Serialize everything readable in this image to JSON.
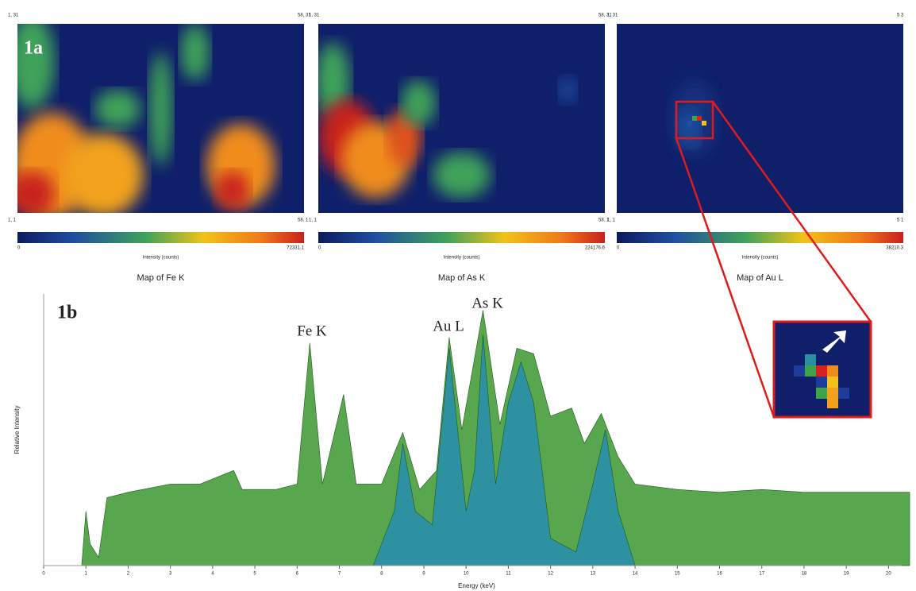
{
  "panel_a": {
    "label": "1a",
    "maps": [
      {
        "title": "Map of Fe K",
        "colorbar_label": "Intensity (counts)",
        "colorbar_min": 0,
        "colorbar_max": 72331.1,
        "corners": {
          "top_left": "1, 31",
          "top_right": "58, 31",
          "bottom_left": "1, 1",
          "bottom_right": "58, 1"
        }
      },
      {
        "title": "Map of As K",
        "colorbar_label": "Intensity (counts)",
        "colorbar_min": 0,
        "colorbar_max": 224176.6,
        "corners": {
          "top_left": "1, 31",
          "top_right": "58, 31",
          "bottom_left": "1, 1",
          "bottom_right": "58, 1"
        }
      },
      {
        "title": "Map of Au L",
        "colorbar_label": "Intensity (counts)",
        "colorbar_min": 0,
        "colorbar_max": 38210.3,
        "corners": {
          "top_left": "1, 31",
          "top_right": "5 3",
          "bottom_left": "1, 1",
          "bottom_right": "5 1"
        }
      }
    ]
  },
  "chart_data": {
    "type": "area",
    "label": "1b",
    "x_label": "Energy (keV)",
    "y_label": "Relative Intensity",
    "annotations": [
      "Fe K",
      "Au L",
      "As K"
    ],
    "xlim": [
      0,
      20.5
    ],
    "ylim": [
      0,
      100
    ],
    "xticks": [
      0,
      1,
      2,
      3,
      4,
      5,
      6,
      7,
      8,
      9,
      10,
      11,
      12,
      13,
      14,
      15,
      16,
      17,
      18,
      19,
      20
    ],
    "series": [
      {
        "color": "#4a9e3f",
        "x": [
          0,
          0.9,
          1.0,
          1.1,
          1.3,
          1.5,
          2,
          3,
          3.7,
          4.5,
          4.7,
          5.5,
          6,
          6.3,
          6.6,
          7.1,
          7.4,
          8,
          8.5,
          8.9,
          9.3,
          9.6,
          9.9,
          10.4,
          10.8,
          11.2,
          11.6,
          12.0,
          12.5,
          12.8,
          13.2,
          13.6,
          14,
          15,
          16,
          17,
          18,
          19,
          20,
          20.5
        ],
        "values": [
          0,
          0,
          20,
          8,
          3,
          25,
          27,
          30,
          30,
          35,
          28,
          28,
          30,
          82,
          30,
          63,
          30,
          30,
          49,
          28,
          35,
          84,
          50,
          94,
          52,
          80,
          78,
          55,
          58,
          45,
          56,
          40,
          30,
          28,
          27,
          28,
          27,
          27,
          27,
          27
        ]
      },
      {
        "color": "#2a8fa8",
        "x": [
          0,
          7.8,
          8.3,
          8.5,
          8.8,
          9.2,
          9.6,
          10.0,
          10.2,
          10.4,
          10.7,
          11.0,
          11.3,
          11.6,
          12,
          12.6,
          13.0,
          13.3,
          13.6,
          14,
          20.5
        ],
        "values": [
          0,
          0,
          20,
          45,
          20,
          15,
          80,
          20,
          35,
          85,
          30,
          60,
          75,
          60,
          10,
          5,
          30,
          50,
          20,
          0,
          0
        ]
      }
    ]
  }
}
